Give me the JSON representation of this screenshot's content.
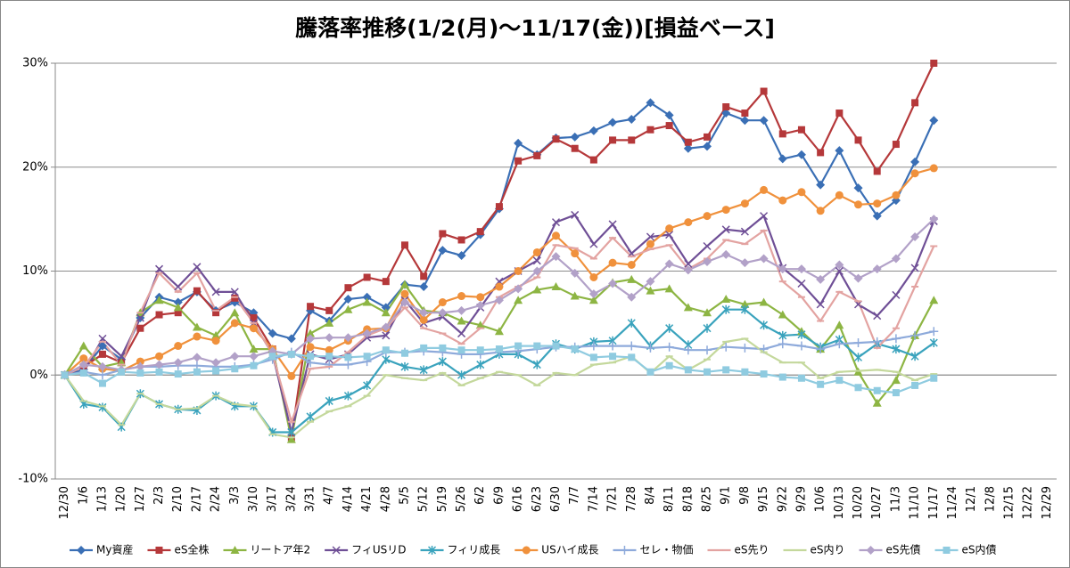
{
  "chart_data": {
    "type": "line",
    "title": "騰落率推移(1/2(月)～11/17(金))[損益ベース]",
    "categories": [
      "12/30",
      "1/6",
      "1/13",
      "1/20",
      "1/27",
      "2/3",
      "2/10",
      "2/17",
      "2/24",
      "3/3",
      "3/10",
      "3/17",
      "3/24",
      "3/31",
      "4/7",
      "4/14",
      "4/21",
      "4/28",
      "5/5",
      "5/12",
      "5/19",
      "5/26",
      "6/2",
      "6/9",
      "6/16",
      "6/23",
      "6/30",
      "7/7",
      "7/14",
      "7/21",
      "7/28",
      "8/4",
      "8/11",
      "8/18",
      "8/25",
      "9/1",
      "9/8",
      "9/15",
      "9/22",
      "9/29",
      "10/6",
      "10/13",
      "10/20",
      "10/27",
      "11/3",
      "11/10",
      "11/17",
      "11/24",
      "12/1",
      "12/8",
      "12/15",
      "12/22",
      "12/29"
    ],
    "ylim": [
      -10,
      30
    ],
    "yticks": [
      {
        "value": -10,
        "label": "-10%"
      },
      {
        "value": 0,
        "label": "0%"
      },
      {
        "value": 10,
        "label": "10%"
      },
      {
        "value": 20,
        "label": "20%"
      },
      {
        "value": 30,
        "label": "30%"
      }
    ],
    "grid": true,
    "legend": "bottom",
    "series": [
      {
        "name": "My資産",
        "color": "#3a6fb5",
        "marker": "diamond",
        "values": [
          0,
          0.5,
          2.8,
          1.5,
          5.5,
          7.5,
          7,
          8,
          6.2,
          7,
          6,
          4,
          3.5,
          6.2,
          5.2,
          7.3,
          7.5,
          6.5,
          8.7,
          8.5,
          12,
          11.5,
          13.5,
          16,
          22.3,
          21.2,
          22.8,
          22.9,
          23.5,
          24.3,
          24.6,
          26.2,
          25,
          21.8,
          22,
          25.2,
          24.5,
          24.5,
          20.8,
          21.2,
          18.3,
          21.6,
          18,
          15.3,
          16.8,
          20.5,
          24.5,
          null,
          null,
          null,
          null,
          null,
          null
        ]
      },
      {
        "name": "eS全株",
        "color": "#b5383a",
        "marker": "square",
        "values": [
          0,
          0.8,
          2,
          1.2,
          4.5,
          5.8,
          6,
          8.1,
          6,
          7.4,
          5.5,
          2.5,
          -6,
          6.6,
          6.2,
          8.4,
          9.4,
          9,
          12.5,
          9.5,
          13.6,
          13,
          13.8,
          16.2,
          20.6,
          21.1,
          22.7,
          21.8,
          20.7,
          22.6,
          22.6,
          23.6,
          24,
          22.4,
          22.9,
          25.8,
          25.2,
          27.3,
          23.2,
          23.6,
          21.4,
          25.2,
          22.6,
          19.6,
          22.2,
          26.2,
          30,
          null,
          null,
          null,
          null,
          null,
          null
        ]
      },
      {
        "name": "リートア年2",
        "color": "#8db543",
        "marker": "triangle",
        "values": [
          0,
          2.8,
          0.8,
          1.2,
          6,
          7.2,
          6.5,
          4.6,
          3.8,
          6,
          2.5,
          2.5,
          -6.2,
          4,
          5,
          6.3,
          7,
          6,
          8.7,
          6.2,
          6,
          5.2,
          4.8,
          4.2,
          7.2,
          8.2,
          8.5,
          7.6,
          7.2,
          8.9,
          9.2,
          8.1,
          8.3,
          6.5,
          6,
          7.3,
          6.8,
          7,
          5.8,
          4.2,
          2.5,
          4.8,
          0.3,
          -2.7,
          -0.5,
          3.8,
          7.2,
          null,
          null,
          null,
          null,
          null,
          null
        ]
      },
      {
        "name": "フィUSリD",
        "color": "#6f4f96",
        "marker": "x",
        "values": [
          0,
          0.3,
          3.5,
          1.8,
          5.5,
          10.2,
          8.5,
          10.4,
          8,
          8,
          5,
          2,
          -5.5,
          2,
          1.5,
          2,
          3.6,
          3.8,
          7.2,
          5,
          5.6,
          4,
          6.5,
          9,
          10,
          11,
          14.7,
          15.4,
          12.6,
          14.5,
          11.7,
          13.3,
          13.5,
          10.7,
          12.4,
          14,
          13.8,
          15.3,
          10.3,
          8.8,
          6.8,
          10,
          6.8,
          5.7,
          7.7,
          10.3,
          14.8,
          null,
          null,
          null,
          null,
          null,
          null
        ]
      },
      {
        "name": "フィリ成長",
        "color": "#3aa3bd",
        "marker": "star",
        "values": [
          0,
          -2.8,
          -3.1,
          -5,
          -1.8,
          -2.8,
          -3.3,
          -3.4,
          -2,
          -3,
          -3,
          -5.5,
          -5.5,
          -4,
          -2.5,
          -2,
          -1,
          1.5,
          0.8,
          0.5,
          1.3,
          0,
          1,
          2,
          2,
          1,
          3,
          2.5,
          3.2,
          3.3,
          5,
          2.8,
          4.5,
          2.9,
          4.5,
          6.3,
          6.3,
          4.8,
          3.8,
          3.9,
          2.7,
          3.4,
          1.7,
          3,
          2.5,
          1.8,
          3.1,
          null,
          null,
          null,
          null,
          null,
          null
        ]
      },
      {
        "name": "USハイ成長",
        "color": "#f0913c",
        "marker": "circle",
        "values": [
          0,
          1.6,
          0.6,
          0.4,
          1.3,
          1.8,
          2.8,
          3.7,
          3.3,
          5,
          4.5,
          2.5,
          -0.1,
          2.7,
          2.4,
          3.3,
          4.4,
          4.5,
          7.8,
          5.3,
          7,
          7.6,
          7.5,
          8.5,
          10,
          11.8,
          13.4,
          11.7,
          9.4,
          10.8,
          10.6,
          12.6,
          14.1,
          14.7,
          15.3,
          15.9,
          16.5,
          17.8,
          16.8,
          17.6,
          15.8,
          17.3,
          16.4,
          16.5,
          17.3,
          19.4,
          19.9,
          null,
          null,
          null,
          null,
          null,
          null
        ]
      },
      {
        "name": "セレ・物価",
        "color": "#8eaadb",
        "marker": "plus",
        "values": [
          0,
          0.3,
          0,
          0.5,
          0.8,
          0.8,
          0.9,
          0.9,
          0.8,
          0.8,
          1,
          1.5,
          2.2,
          1.2,
          1,
          1,
          1.3,
          2.2,
          2.2,
          2.3,
          2.2,
          2,
          2,
          2.2,
          2.3,
          2.5,
          2.7,
          2.7,
          2.8,
          2.8,
          2.8,
          2.6,
          2.7,
          2.4,
          2.4,
          2.7,
          2.6,
          2.5,
          3,
          2.8,
          2.5,
          3,
          3.1,
          3.2,
          3.5,
          3.8,
          4.2,
          null,
          null,
          null,
          null,
          null,
          null
        ]
      },
      {
        "name": "eS先り",
        "color": "#e3a3a1",
        "marker": "dash",
        "values": [
          0,
          0.8,
          3.2,
          1,
          6,
          9.8,
          8,
          9.8,
          6.2,
          7.5,
          5,
          2,
          -4.5,
          0.6,
          0.8,
          2.2,
          3.8,
          4.5,
          6.5,
          4.5,
          4,
          3,
          4.5,
          7.5,
          8.5,
          9.4,
          12.5,
          12.2,
          11.2,
          13.2,
          11.4,
          12.1,
          12.5,
          10.2,
          11.2,
          13,
          12.6,
          13.9,
          9,
          7.5,
          5.2,
          8,
          7.1,
          2.6,
          4.5,
          8.5,
          12.4,
          null,
          null,
          null,
          null,
          null,
          null
        ]
      },
      {
        "name": "eS内り",
        "color": "#c4d89c",
        "marker": "dash",
        "values": [
          0,
          -2.5,
          -3,
          -4.8,
          -1.8,
          -2.8,
          -3.3,
          -3.2,
          -2,
          -2.8,
          -3,
          -5.7,
          -6,
          -4.5,
          -3.5,
          -3,
          -2,
          0,
          -0.3,
          -0.5,
          0.2,
          -1,
          -0.3,
          0.3,
          0,
          -1,
          0.2,
          0,
          1,
          1.2,
          1.8,
          0.2,
          1.8,
          0.5,
          1.5,
          3.2,
          3.5,
          2.2,
          1.2,
          1.2,
          -0.3,
          0.3,
          0.4,
          0.5,
          0.3,
          -0.5,
          0.1,
          null,
          null,
          null,
          null,
          null,
          null
        ]
      },
      {
        "name": "eS先債",
        "color": "#b2a1c8",
        "marker": "diamond",
        "values": [
          0,
          1,
          0.8,
          0.5,
          0.8,
          1,
          1.2,
          1.7,
          1.2,
          1.8,
          1.8,
          2.3,
          2,
          3.5,
          3.6,
          3.6,
          4,
          4.6,
          7,
          6,
          6,
          6.2,
          6.7,
          7.2,
          8.3,
          10,
          11.4,
          9.8,
          7.8,
          8.8,
          7.5,
          9,
          10.7,
          10.1,
          10.9,
          11.6,
          10.8,
          11.2,
          10.2,
          10.2,
          9.2,
          10.6,
          9.3,
          10.2,
          11.2,
          13.3,
          15,
          null,
          null,
          null,
          null,
          null,
          null
        ]
      },
      {
        "name": "eS内債",
        "color": "#8fcbe0",
        "marker": "square",
        "values": [
          0,
          0.2,
          -0.8,
          0.3,
          0.2,
          0.3,
          0.1,
          0.3,
          0.4,
          0.6,
          0.9,
          1.8,
          2,
          1.8,
          1.8,
          1.7,
          1.8,
          2.4,
          2.1,
          2.6,
          2.6,
          2.4,
          2.4,
          2.5,
          2.8,
          2.8,
          2.8,
          2.5,
          1.7,
          1.8,
          1.7,
          0.3,
          0.9,
          0.5,
          0.3,
          0.5,
          0.3,
          0.1,
          -0.2,
          -0.3,
          -0.9,
          -0.5,
          -1.2,
          -1.5,
          -1.7,
          -1,
          -0.3,
          null,
          null,
          null,
          null,
          null,
          null
        ]
      }
    ]
  }
}
